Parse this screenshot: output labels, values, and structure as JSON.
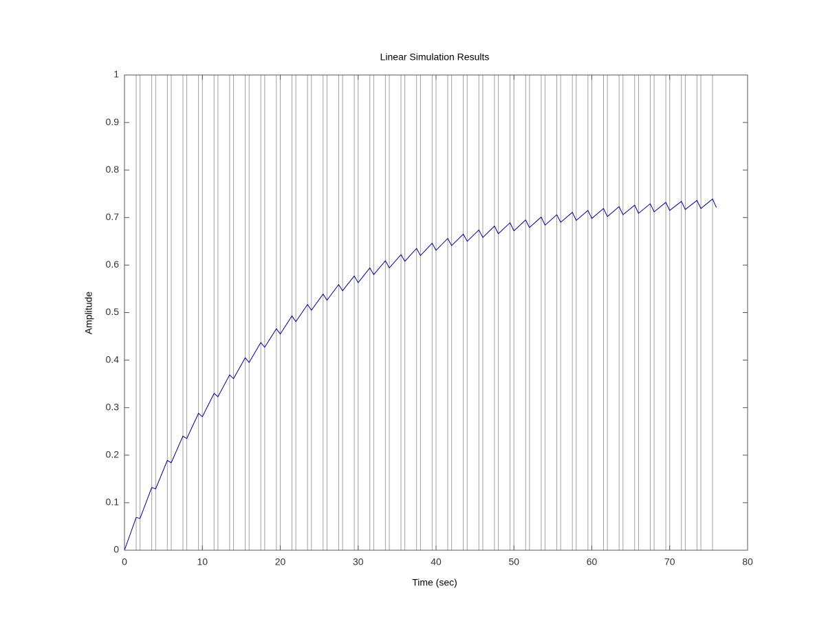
{
  "chart_data": {
    "type": "line",
    "title": "Linear Simulation Results",
    "x_label": "Time (sec)",
    "y_label": "Amplitude",
    "xlim": [
      0,
      80
    ],
    "xticks": [
      0,
      10,
      20,
      30,
      40,
      50,
      60,
      70,
      80
    ],
    "ylim": [
      0,
      1
    ],
    "yticks": [
      0,
      0.1,
      0.2,
      0.3,
      0.4,
      0.5,
      0.6,
      0.7,
      0.8,
      0.9,
      1
    ],
    "series": [
      {
        "color": "#a0a0a0",
        "x": [
          0,
          1.5,
          1.5,
          2,
          2,
          3.5,
          3.5,
          4,
          4,
          5.5,
          5.5,
          6,
          6,
          7.5,
          7.5,
          8,
          8,
          9.5,
          9.5,
          10,
          10,
          11.5,
          11.5,
          12,
          12,
          13.5,
          13.5,
          14,
          14,
          15.5,
          15.5,
          16,
          16,
          17.5,
          17.5,
          18,
          18,
          19.5,
          19.5,
          20,
          20,
          21.5,
          21.5,
          22,
          22,
          23.5,
          23.5,
          24,
          24,
          25.5,
          25.5,
          26,
          26,
          27.5,
          27.5,
          28,
          28,
          29.5,
          29.5,
          30,
          30,
          31.5,
          31.5,
          32,
          32,
          33.5,
          33.5,
          34,
          34,
          35.5,
          35.5,
          36,
          36,
          37.5,
          37.5,
          38,
          38,
          39.5,
          39.5,
          40,
          40,
          41.5,
          41.5,
          42,
          42,
          43.5,
          43.5,
          44,
          44,
          45.5,
          45.5,
          46,
          46,
          47.5,
          47.5,
          48,
          48,
          49.5,
          49.5,
          50,
          50,
          51.5,
          51.5,
          52,
          52,
          53.5,
          53.5,
          54,
          54,
          55.5,
          55.5,
          56,
          56,
          57.5,
          57.5,
          58,
          58,
          59.5,
          59.5,
          60,
          60,
          61.5,
          61.5,
          62,
          62,
          63.5,
          63.5,
          64,
          64,
          65.5,
          65.5,
          66,
          66,
          67.5,
          67.5,
          68,
          68,
          69.5,
          69.5,
          70,
          70,
          71.5,
          71.5,
          72,
          72,
          73.5,
          73.5,
          74,
          74,
          75.5,
          75.5,
          76
        ],
        "values": [
          1,
          1,
          0,
          0,
          1,
          1,
          0,
          0,
          1,
          1,
          0,
          0,
          1,
          1,
          0,
          0,
          1,
          1,
          0,
          0,
          1,
          1,
          0,
          0,
          1,
          1,
          0,
          0,
          1,
          1,
          0,
          0,
          1,
          1,
          0,
          0,
          1,
          1,
          0,
          0,
          1,
          1,
          0,
          0,
          1,
          1,
          0,
          0,
          1,
          1,
          0,
          0,
          1,
          1,
          0,
          0,
          1,
          1,
          0,
          0,
          1,
          1,
          0,
          0,
          1,
          1,
          0,
          0,
          1,
          1,
          0,
          0,
          1,
          1,
          0,
          0,
          1,
          1,
          0,
          0,
          1,
          1,
          0,
          0,
          1,
          1,
          0,
          0,
          1,
          1,
          0,
          0,
          1,
          1,
          0,
          0,
          1,
          1,
          0,
          0,
          1,
          1,
          0,
          0,
          1,
          1,
          0,
          0,
          1,
          1,
          0,
          0,
          1,
          1,
          0,
          0,
          1,
          1,
          0,
          0,
          1,
          1,
          0,
          0,
          1,
          1,
          0,
          0,
          1,
          1,
          0,
          0,
          1,
          1,
          0,
          0,
          1,
          1,
          0,
          0,
          1,
          1,
          0,
          0,
          1,
          1,
          0,
          0,
          1,
          1,
          0,
          0
        ]
      },
      {
        "color": "#00008b",
        "x": [
          0,
          1.5,
          2,
          3.5,
          4,
          5.5,
          6,
          7.5,
          8,
          9.5,
          10,
          11.5,
          12,
          13.5,
          14,
          15.5,
          16,
          17.5,
          18,
          19.5,
          20,
          21.5,
          22,
          23.5,
          24,
          25.5,
          26,
          27.5,
          28,
          29.5,
          30,
          31.5,
          32,
          33.5,
          34,
          35.5,
          36,
          37.5,
          38,
          39.5,
          40,
          41.5,
          42,
          43.5,
          44,
          45.5,
          46,
          47.5,
          48,
          49.5,
          50,
          51.5,
          52,
          53.5,
          54,
          55.5,
          56,
          57.5,
          58,
          59.5,
          60,
          61.5,
          62,
          63.5,
          64,
          65.5,
          66,
          67.5,
          68,
          69.5,
          70,
          71.5,
          72,
          73.5,
          74,
          75.5,
          76
        ],
        "values": [
          0,
          0.069,
          0.067,
          0.132,
          0.129,
          0.189,
          0.184,
          0.24,
          0.235,
          0.288,
          0.281,
          0.33,
          0.323,
          0.369,
          0.361,
          0.405,
          0.395,
          0.437,
          0.427,
          0.466,
          0.455,
          0.493,
          0.481,
          0.517,
          0.505,
          0.539,
          0.526,
          0.559,
          0.546,
          0.577,
          0.563,
          0.594,
          0.58,
          0.609,
          0.594,
          0.622,
          0.608,
          0.635,
          0.62,
          0.646,
          0.631,
          0.656,
          0.641,
          0.665,
          0.65,
          0.674,
          0.658,
          0.682,
          0.666,
          0.689,
          0.672,
          0.695,
          0.679,
          0.701,
          0.684,
          0.706,
          0.69,
          0.711,
          0.694,
          0.715,
          0.698,
          0.719,
          0.702,
          0.723,
          0.706,
          0.726,
          0.709,
          0.729,
          0.712,
          0.732,
          0.715,
          0.734,
          0.717,
          0.736,
          0.719,
          0.739,
          0.721
        ]
      }
    ]
  }
}
